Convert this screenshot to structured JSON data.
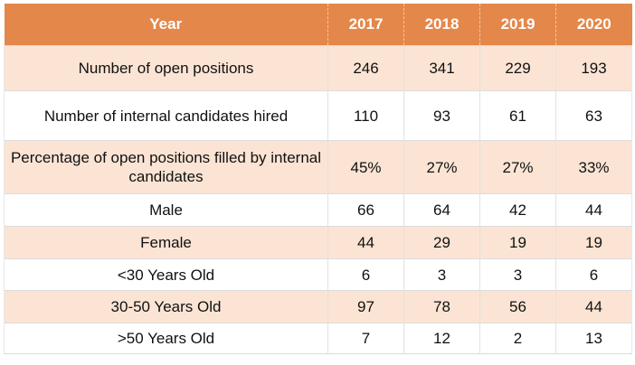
{
  "table": {
    "header": [
      "Year",
      "2017",
      "2018",
      "2019",
      "2020"
    ],
    "rows": [
      {
        "label": "Number of open positions",
        "values": [
          "246",
          "341",
          "229",
          "193"
        ]
      },
      {
        "label": "Number of internal candidates hired",
        "values": [
          "110",
          "93",
          "61",
          "63"
        ]
      },
      {
        "label": "Percentage of open positions filled by internal candidates",
        "values": [
          "45%",
          "27%",
          "27%",
          "33%"
        ]
      },
      {
        "label": "Male",
        "values": [
          "66",
          "64",
          "42",
          "44"
        ]
      },
      {
        "label": "Female",
        "values": [
          "44",
          "29",
          "19",
          "19"
        ]
      },
      {
        "label": "<30 Years Old",
        "values": [
          "6",
          "3",
          "3",
          "6"
        ]
      },
      {
        "label": "30-50 Years Old",
        "values": [
          "97",
          "78",
          "56",
          "44"
        ]
      },
      {
        "label": ">50 Years Old",
        "values": [
          "7",
          "12",
          "2",
          "13"
        ]
      }
    ]
  },
  "colors": {
    "header_bg": "#e4874a",
    "header_text": "#ffffff",
    "band_bg": "#fbe4d4",
    "row_bg": "#ffffff"
  }
}
